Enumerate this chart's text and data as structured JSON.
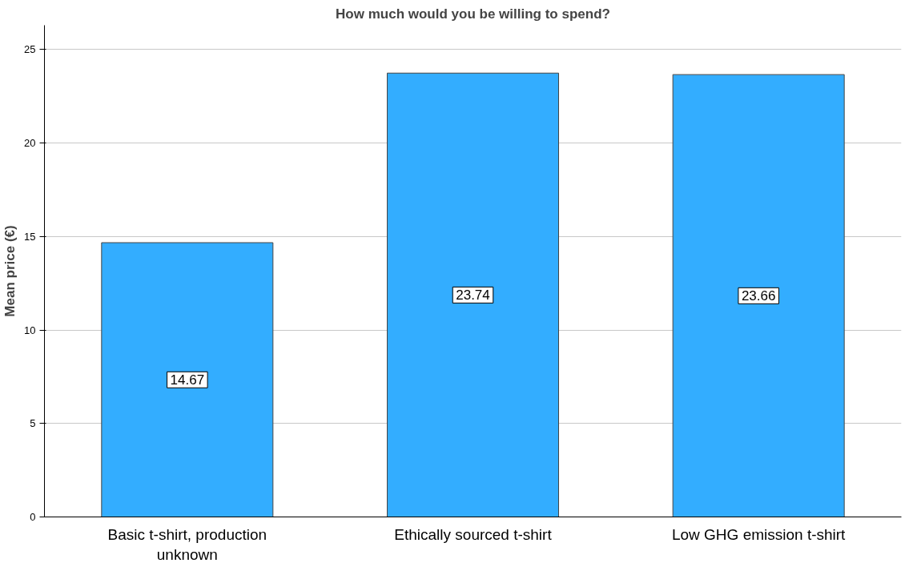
{
  "chart_data": {
    "type": "bar",
    "title": "How much would you be willing to spend?",
    "ylabel": "Mean price (€)",
    "categories": [
      "Basic t-shirt, production unknown",
      "Ethically sourced t-shirt",
      "Low GHG emission t-shirt"
    ],
    "values": [
      14.67,
      23.74,
      23.66
    ],
    "color": "#33adff",
    "ylim": [
      0,
      26.3
    ],
    "yticks": [
      0,
      5,
      10,
      15,
      20,
      25
    ],
    "grid": "y",
    "data_labels": true
  }
}
